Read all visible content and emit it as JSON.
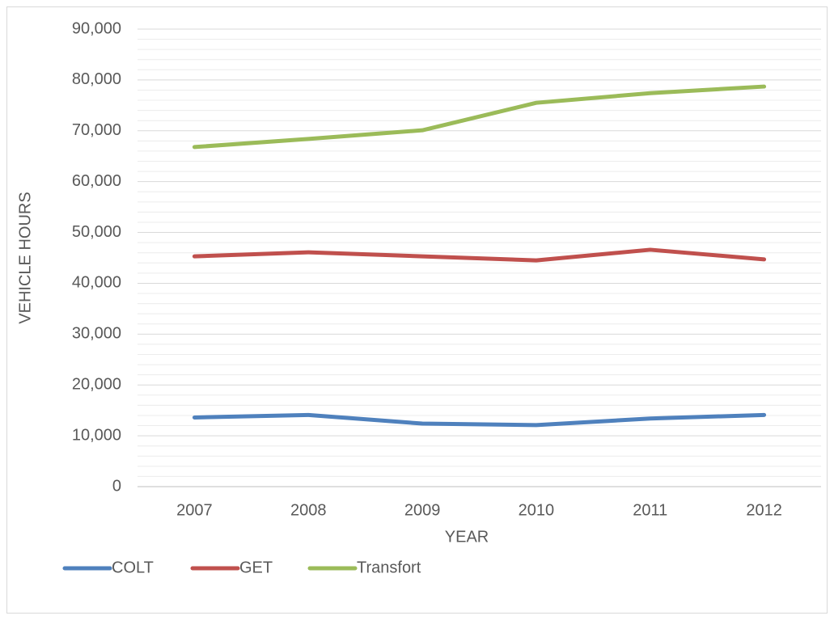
{
  "chart_data": {
    "type": "line",
    "x_label": "YEAR",
    "y_label": "VEHICLE HOURS",
    "categories": [
      "2007",
      "2008",
      "2009",
      "2010",
      "2011",
      "2012"
    ],
    "series": [
      {
        "name": "COLT",
        "color": "#4f81bd",
        "values": [
          13600,
          14100,
          12400,
          12100,
          13400,
          14100
        ]
      },
      {
        "name": "GET",
        "color": "#c0504d",
        "values": [
          45300,
          46100,
          45300,
          44500,
          46600,
          44700
        ]
      },
      {
        "name": "Transfort",
        "color": "#9bbb59",
        "values": [
          66800,
          68400,
          70100,
          75500,
          77400,
          78700
        ]
      }
    ],
    "ylim": [
      0,
      90000
    ],
    "yticks": [
      0,
      {
        "value": 10000,
        "label": "10,000"
      },
      {
        "value": 20000,
        "label": "20,000"
      },
      {
        "value": 30000,
        "label": "30,000"
      },
      {
        "value": 40000,
        "label": "40,000"
      },
      {
        "value": 50000,
        "label": "50,000"
      },
      {
        "value": 60000,
        "label": "60,000"
      },
      {
        "value": 70000,
        "label": "70,000"
      },
      {
        "value": 80000,
        "label": "80,000"
      },
      {
        "value": 90000,
        "label": "90,000"
      }
    ],
    "grid": true,
    "minor_grid": true,
    "legend": "bottom-left"
  }
}
